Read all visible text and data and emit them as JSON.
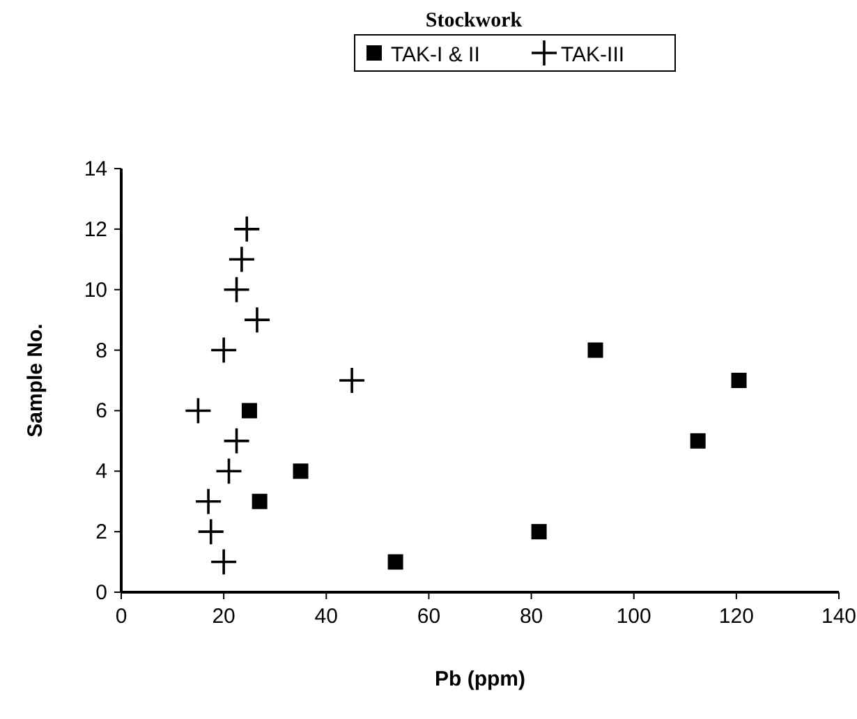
{
  "chart_data": {
    "type": "scatter",
    "title": "Stockwork",
    "xlabel": "Pb (ppm)",
    "ylabel": "Sample No.",
    "xlim": [
      0,
      140
    ],
    "xticks": [
      0,
      20,
      40,
      60,
      80,
      100,
      120,
      140
    ],
    "ylim": [
      0,
      14
    ],
    "yticks": [
      0,
      2,
      4,
      6,
      8,
      10,
      12,
      14
    ],
    "grid": false,
    "legend": "top",
    "series": [
      {
        "name": "TAK-I & II",
        "color": "#000000",
        "marker": "square",
        "x": [
          53.5,
          81.5,
          27,
          35,
          112.5,
          25,
          120.5,
          92.5
        ],
        "values": [
          1,
          2,
          3,
          4,
          5,
          6,
          7,
          8
        ]
      },
      {
        "name": "TAK-III",
        "color": "#000000",
        "marker": "cross",
        "x": [
          20,
          17.5,
          17,
          21,
          22.5,
          15,
          45,
          20,
          26.5,
          22.5,
          23.5,
          24.5
        ],
        "values": [
          1,
          2,
          3,
          4,
          5,
          6,
          7,
          8,
          9,
          10,
          11,
          12
        ]
      }
    ]
  }
}
